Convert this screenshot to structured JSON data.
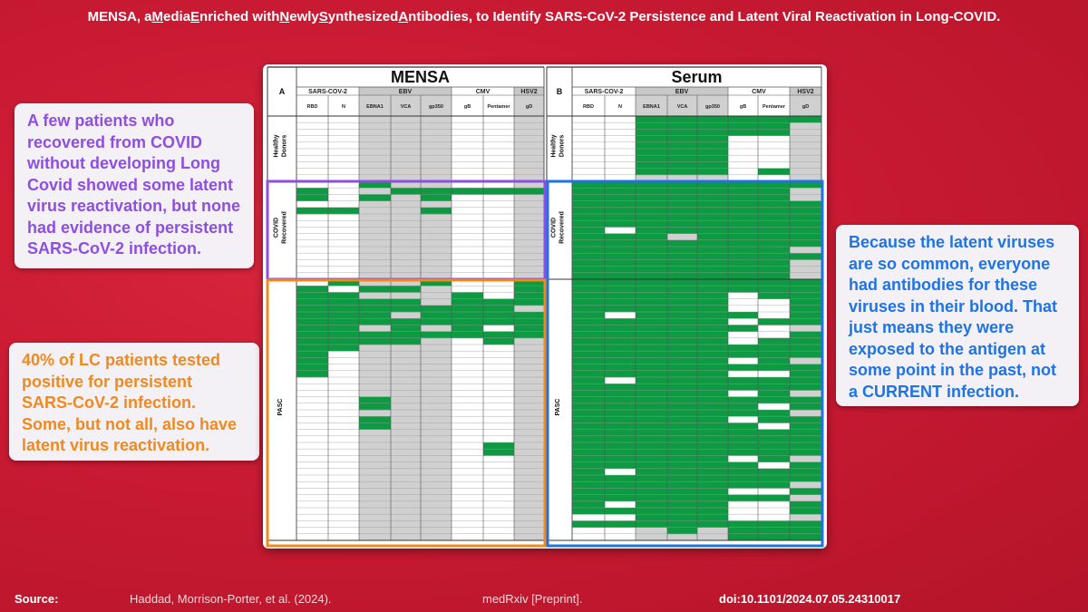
{
  "title": {
    "parts": [
      {
        "t": "MENSA, a ",
        "u": false
      },
      {
        "t": "M",
        "u": true
      },
      {
        "t": "edia ",
        "u": false
      },
      {
        "t": "E",
        "u": true
      },
      {
        "t": "nriched with ",
        "u": false
      },
      {
        "t": "N",
        "u": true
      },
      {
        "t": "ewly ",
        "u": false
      },
      {
        "t": "S",
        "u": true
      },
      {
        "t": "ynthesized ",
        "u": false
      },
      {
        "t": "A",
        "u": true
      },
      {
        "t": "ntibodies, to Identify SARS-CoV-2 Persistence and Latent Viral Reactivation in Long-COVID.",
        "u": false
      }
    ]
  },
  "callouts": {
    "recovered": "A few patients who recovered from COVID without developing Long Covid showed some latent virus reactivation, but none had evidence of persistent SARS-CoV-2 infection.",
    "pasc": "40% of LC patients tested positive for persistent SARS-CoV-2 infection. Some, but not all, also have latent virus reactivation.",
    "serum": "Because the latent viruses are so common, everyone had antibodies for these viruses in their blood. That just means they were exposed to the antigen at some point in the past, not a CURRENT infection."
  },
  "footer": {
    "label": "Source:",
    "authors": "Haddad, Morrison-Porter, et al. (2024).",
    "journal": "medRxiv [Preprint].",
    "doi": "doi:10.1101/2024.07.05.24310017"
  },
  "colors": {
    "positive": "#0e9a43",
    "background": "#c91a33",
    "recovered_box": "#8e4fe0",
    "pasc_box": "#f0891e",
    "serum_box": "#1e73e6"
  },
  "chart_data": {
    "type": "heatmap",
    "groups": [
      {
        "label": "Healthy Donors",
        "rows": 10
      },
      {
        "label": "COVID Recovered",
        "rows": 15
      },
      {
        "label": "PASC",
        "rows": 40
      }
    ],
    "virus_headers": [
      {
        "name": "SARS-COV-2",
        "span": 2
      },
      {
        "name": "EBV",
        "span": 3
      },
      {
        "name": "CMV",
        "span": 2
      },
      {
        "name": "HSV2",
        "span": 1
      }
    ],
    "columns": [
      "RBD",
      "N",
      "EBNA1",
      "VCA",
      "gp350",
      "gB",
      "Pentamer",
      "gD"
    ],
    "shaded_columns": [
      2,
      3,
      4,
      7
    ],
    "panels": [
      {
        "letter": "A",
        "title": "MENSA",
        "positive_cells": {
          "RBD": [
            11,
            12,
            14,
            26,
            27,
            28,
            29,
            30,
            31,
            32,
            33,
            34,
            35,
            36,
            37,
            38,
            39
          ],
          "N": [
            14,
            25,
            27,
            28,
            29,
            30,
            31,
            32,
            33,
            34,
            35
          ],
          "EBNA1": [
            10,
            12,
            26,
            28,
            29,
            30,
            31,
            33,
            34,
            43,
            44,
            46,
            47
          ],
          "VCA": [
            11,
            26,
            28,
            29,
            31,
            32,
            33,
            34
          ],
          "gp350": [
            11,
            12,
            14,
            25,
            29,
            30,
            31,
            33
          ],
          "gB": [
            11,
            27,
            28,
            29,
            30,
            31,
            32,
            33
          ],
          "Pentamer": [
            11,
            28,
            29,
            30,
            31,
            33,
            34,
            50,
            51
          ],
          "gD": [
            11,
            25,
            26,
            27,
            28,
            30,
            31,
            32,
            33
          ]
        }
      },
      {
        "letter": "B",
        "title": "Serum",
        "negative_cells": {
          "RBD": [
            0,
            1,
            2,
            3,
            4,
            5,
            6,
            7,
            8,
            9,
            61,
            63,
            64
          ],
          "N": [
            0,
            1,
            2,
            3,
            4,
            5,
            6,
            7,
            8,
            9,
            17,
            30,
            40,
            54,
            59,
            61,
            63,
            64
          ],
          "EBNA1": [
            9,
            63,
            64
          ],
          "VCA": [
            9,
            18,
            64
          ],
          "gp350": [
            9,
            63,
            64
          ],
          "gB": [
            3,
            4,
            5,
            6,
            7,
            8,
            9,
            27,
            28,
            29,
            31,
            33,
            34,
            37,
            39,
            42,
            46,
            52,
            57,
            59,
            60,
            61
          ],
          "Pentamer": [
            3,
            4,
            5,
            6,
            7,
            9,
            28,
            29,
            30,
            32,
            33,
            39,
            44,
            47,
            53,
            57,
            59,
            60,
            61
          ],
          "gD": [
            1,
            2,
            3,
            4,
            5,
            6,
            7,
            8,
            9,
            11,
            12,
            20,
            22,
            23,
            24,
            32,
            37,
            42,
            45,
            52,
            56,
            58,
            61
          ]
        }
      }
    ]
  }
}
